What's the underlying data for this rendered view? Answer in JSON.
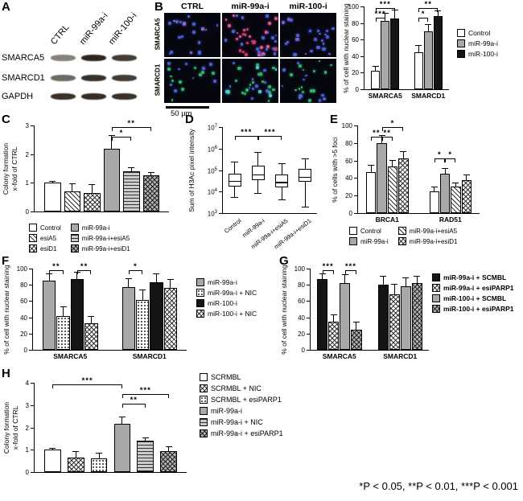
{
  "figure": {
    "panel_labels": [
      "A",
      "B",
      "C",
      "D",
      "E",
      "F",
      "G",
      "H"
    ],
    "p_note": "*P < 0.05, **P < 0.01, ***P < 0.001",
    "western": {
      "lanes": [
        "CTRL",
        "miR-99a-i",
        "miR-100-i"
      ],
      "proteins": [
        "SMARCA5",
        "SMARCD1",
        "GAPDH"
      ],
      "bands": [
        [
          0.55,
          0.95,
          0.85
        ],
        [
          0.65,
          0.9,
          0.85
        ],
        [
          0.9,
          0.92,
          0.9
        ]
      ]
    },
    "microscopy": {
      "col_headers": [
        "CTRL",
        "miR-99a-i",
        "miR-100-i"
      ],
      "row_labels": [
        "SMARCA5",
        "SMARCD1"
      ],
      "scale_bar_label": "50 µm",
      "cells": [
        {
          "dots": [
            [
              "#4b5fd6",
              14
            ],
            [
              "#8a6be0",
              5
            ]
          ]
        },
        {
          "dots": [
            [
              "#4b5fd6",
              20
            ],
            [
              "#e0569a",
              16
            ],
            [
              "#cf3b66",
              8
            ]
          ]
        },
        {
          "dots": [
            [
              "#4b5fd6",
              18
            ],
            [
              "#7a5fd0",
              6
            ]
          ]
        },
        {
          "dots": [
            [
              "#35b06a",
              10
            ],
            [
              "#4b5fd6",
              9
            ]
          ]
        },
        {
          "dots": [
            [
              "#35b06a",
              18
            ],
            [
              "#4b5fd6",
              10
            ],
            [
              "#57c8d8",
              5
            ]
          ]
        },
        {
          "dots": [
            [
              "#35b06a",
              15
            ],
            [
              "#4b5fd6",
              9
            ]
          ]
        }
      ]
    }
  },
  "chart_data": [
    {
      "id": "B",
      "type": "bar",
      "ylabel": "% of cell with nuclear staining",
      "ylim": [
        0,
        100
      ],
      "yticks": [
        0,
        20,
        40,
        60,
        80,
        100
      ],
      "categories": [
        "SMARCA5",
        "SMARCD1"
      ],
      "pad": 8,
      "gg": 18,
      "series": [
        {
          "name": "Control",
          "pattern": "white",
          "values": [
            22,
            45
          ],
          "errors": [
            6,
            8
          ]
        },
        {
          "name": "miR-99a-i",
          "pattern": "gray",
          "values": [
            83,
            70
          ],
          "errors": [
            9,
            9
          ]
        },
        {
          "name": "miR-100-i",
          "pattern": "black",
          "values": [
            85,
            88
          ],
          "errors": [
            11,
            7
          ]
        }
      ],
      "legend": {
        "cols": 1
      },
      "sig": [
        {
          "cat": 0,
          "a": 0,
          "b": 1,
          "label": "***",
          "row": 1
        },
        {
          "cat": 0,
          "a": 0,
          "b": 2,
          "label": "***",
          "row": 0
        },
        {
          "cat": 1,
          "a": 0,
          "b": 1,
          "label": "*",
          "row": 1
        },
        {
          "cat": 1,
          "a": 0,
          "b": 2,
          "label": "**",
          "row": 0
        }
      ]
    },
    {
      "id": "C",
      "type": "bar",
      "ylabel": "Colony formation\nx-fold of CTRL",
      "ylim": [
        0,
        3
      ],
      "yticks": [
        0,
        1,
        2,
        3
      ],
      "categories": [
        ""
      ],
      "pad": 12,
      "ib": 4,
      "series": [
        {
          "name": "Control",
          "pattern": "white",
          "values": [
            1.0
          ],
          "errors": [
            0.06
          ]
        },
        {
          "name": "esiA5",
          "pattern": "hatch",
          "values": [
            0.7
          ],
          "errors": [
            0.28
          ]
        },
        {
          "name": "esiD1",
          "pattern": "cross",
          "values": [
            0.65
          ],
          "errors": [
            0.3
          ]
        },
        {
          "name": "miR-99a-i",
          "pattern": "gray",
          "values": [
            2.2
          ],
          "errors": [
            0.45
          ]
        },
        {
          "name": "miR-99a-i+esiA5",
          "pattern": "hlines",
          "values": [
            1.4
          ],
          "errors": [
            0.15
          ]
        },
        {
          "name": "miR-99a-i+esiD1",
          "pattern": "graycross",
          "values": [
            1.25
          ],
          "errors": [
            0.12
          ]
        }
      ],
      "legend": {
        "cols": 2
      },
      "sig": [
        {
          "cat": 0,
          "a": 3,
          "b": 4,
          "label": "*",
          "row": 1
        },
        {
          "cat": 0,
          "a": 3,
          "b": 5,
          "label": "**",
          "row": 0
        }
      ]
    },
    {
      "id": "D",
      "type": "box",
      "ylabel": "Sum of H3Ac pixel intensity",
      "scale": "log10",
      "ylim": [
        3,
        7
      ],
      "yticks": [
        3,
        4,
        5,
        6,
        7
      ],
      "boxes": [
        {
          "label": "Control",
          "whislo": 3.75,
          "q1": 4.25,
          "med": 4.5,
          "q3": 4.85,
          "whishi": 5.4
        },
        {
          "label": "miR-99a-i",
          "whislo": 3.95,
          "q1": 4.55,
          "med": 4.8,
          "q3": 5.2,
          "whishi": 5.85
        },
        {
          "label": "miR-99a-i+esiA5",
          "whislo": 3.65,
          "q1": 4.2,
          "med": 4.45,
          "q3": 4.8,
          "whishi": 5.3
        },
        {
          "label": "miR-99a-i+esiD1",
          "whislo": 3.3,
          "q1": 4.45,
          "med": 4.7,
          "q3": 5.05,
          "whishi": 5.55
        }
      ],
      "sig": [
        {
          "a": 0,
          "b": 1,
          "label": "***",
          "yfrac": 0.1
        },
        {
          "a": 1,
          "b": 2,
          "label": "***",
          "yfrac": 0.1
        }
      ]
    },
    {
      "id": "E",
      "type": "bar",
      "ylabel": "% of cells with >5 foci",
      "ylim": [
        0,
        100
      ],
      "yticks": [
        0,
        20,
        40,
        60,
        80,
        100
      ],
      "categories": [
        "BRCA1",
        "RAD51"
      ],
      "pad": 10,
      "gg": 26,
      "series": [
        {
          "name": "Control",
          "pattern": "white",
          "values": [
            47,
            25
          ],
          "errors": [
            8,
            5
          ]
        },
        {
          "name": "miR-99a-i",
          "pattern": "gray",
          "values": [
            80,
            45
          ],
          "errors": [
            9,
            6
          ]
        },
        {
          "name": "miR-99a-i+esiA5",
          "pattern": "hatch",
          "values": [
            53,
            30
          ],
          "errors": [
            8,
            5
          ]
        },
        {
          "name": "miR-99a-i+esiD1",
          "pattern": "cross",
          "values": [
            62,
            38
          ],
          "errors": [
            9,
            6
          ]
        }
      ],
      "legend": {
        "cols": 2
      },
      "sig": [
        {
          "cat": 0,
          "a": 0,
          "b": 1,
          "label": "**",
          "row": 1
        },
        {
          "cat": 0,
          "a": 1,
          "b": 2,
          "label": "**",
          "row": 1
        },
        {
          "cat": 0,
          "a": 1,
          "b": 3,
          "label": "*",
          "row": 0
        },
        {
          "cat": 1,
          "a": 0,
          "b": 1,
          "label": "*",
          "yfrac": 0.38
        },
        {
          "cat": 1,
          "a": 1,
          "b": 2,
          "label": "*",
          "yfrac": 0.38
        }
      ]
    },
    {
      "id": "F",
      "type": "bar",
      "ylabel": "% of cell with nuclear staining",
      "ylim": [
        0,
        100
      ],
      "yticks": [
        0,
        20,
        40,
        60,
        80,
        100
      ],
      "categories": [
        "SMARCA5",
        "SMARCD1"
      ],
      "pad": 12,
      "gg": 30,
      "series": [
        {
          "name": "miR-99a-i",
          "pattern": "gray",
          "values": [
            85,
            77
          ],
          "errors": [
            9,
            11
          ]
        },
        {
          "name": "miR-99a-i + NIC",
          "pattern": "dots",
          "values": [
            42,
            61
          ],
          "errors": [
            11,
            13
          ]
        },
        {
          "name": "miR-100-i",
          "pattern": "black",
          "values": [
            87,
            83
          ],
          "errors": [
            9,
            11
          ]
        },
        {
          "name": "miR-100-i + NIC",
          "pattern": "cross",
          "values": [
            33,
            76
          ],
          "errors": [
            9,
            11
          ]
        }
      ],
      "legend": {
        "cols": 1
      },
      "sig": [
        {
          "cat": 0,
          "a": 0,
          "b": 1,
          "label": "**",
          "row": 0
        },
        {
          "cat": 0,
          "a": 2,
          "b": 3,
          "label": "**",
          "row": 0
        },
        {
          "cat": 1,
          "a": 0,
          "b": 1,
          "label": "*",
          "row": 0
        }
      ]
    },
    {
      "id": "G",
      "type": "bar",
      "ylabel": "% of cell with nuclear staining",
      "ylim": [
        0,
        100
      ],
      "yticks": [
        0,
        20,
        40,
        60,
        80,
        100
      ],
      "categories": [
        "SMARCA5",
        "SMARCD1"
      ],
      "pad": 8,
      "gg": 20,
      "series": [
        {
          "name": "miR-99a-i + SCMBL",
          "pattern": "black",
          "values": [
            87,
            80
          ],
          "errors": [
            7,
            11
          ]
        },
        {
          "name": "miR-99a-i + esiPARP1",
          "pattern": "cross",
          "values": [
            35,
            68
          ],
          "errors": [
            9,
            13
          ]
        },
        {
          "name": "miR-100-i + SCMBL",
          "pattern": "gray",
          "values": [
            82,
            78
          ],
          "errors": [
            11,
            11
          ]
        },
        {
          "name": "miR-100-i + esiPARP1",
          "pattern": "graycross",
          "values": [
            25,
            82
          ],
          "errors": [
            10,
            9
          ]
        }
      ],
      "legend": {
        "cols": 1
      },
      "sig": [
        {
          "cat": 0,
          "a": 0,
          "b": 1,
          "label": "***",
          "row": 0
        },
        {
          "cat": 0,
          "a": 2,
          "b": 3,
          "label": "***",
          "row": 0
        }
      ]
    },
    {
      "id": "H",
      "type": "bar",
      "ylabel": "Colony formation\nx-fold of CTRL",
      "ylim": [
        0,
        4
      ],
      "yticks": [
        0,
        1,
        2,
        3,
        4
      ],
      "categories": [
        ""
      ],
      "pad": 12,
      "ib": 8,
      "series": [
        {
          "name": "SCRMBL",
          "pattern": "white",
          "values": [
            1.0
          ],
          "errors": [
            0.07
          ]
        },
        {
          "name": "SCRMBL + NIC",
          "pattern": "cross",
          "values": [
            0.65
          ],
          "errors": [
            0.3
          ]
        },
        {
          "name": "SCRMBL + esiPARP1",
          "pattern": "dots",
          "values": [
            0.6
          ],
          "errors": [
            0.27
          ]
        },
        {
          "name": "miR-99a-i",
          "pattern": "gray",
          "values": [
            2.15
          ],
          "errors": [
            0.35
          ]
        },
        {
          "name": "miR-99a-i + NIC",
          "pattern": "hlines",
          "values": [
            1.4
          ],
          "errors": [
            0.15
          ]
        },
        {
          "name": "miR-99a-i + esiPARP1",
          "pattern": "graycross",
          "values": [
            0.95
          ],
          "errors": [
            0.2
          ]
        }
      ],
      "legend": {
        "cols": 1
      },
      "sig": [
        {
          "cat": 0,
          "a": 0,
          "b": 3,
          "label": "***",
          "row": 0
        },
        {
          "cat": 0,
          "a": 3,
          "b": 5,
          "label": "***",
          "row": 1
        },
        {
          "cat": 0,
          "a": 3,
          "b": 4,
          "label": "**",
          "row": 2
        }
      ]
    }
  ]
}
